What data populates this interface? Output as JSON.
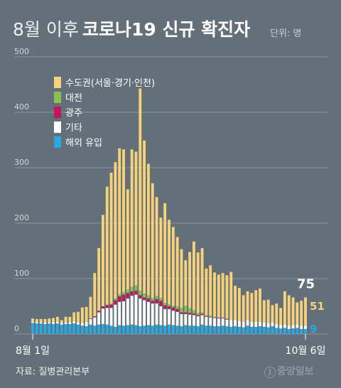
{
  "title": {
    "light": "8월 이후",
    "bold": "코로나19 신규 확진자"
  },
  "unit": "단위: 명",
  "source": "자료: 질병관리본부",
  "logo": "중앙일보",
  "logo_mark": "J",
  "colors": {
    "background": "#636f79",
    "capital": "#f6d27a",
    "daejeon": "#8cc152",
    "gwangju": "#c2185b",
    "other": "#ffffff",
    "overseas": "#29a8e0",
    "gridline": "#8c969e"
  },
  "chart_data": {
    "type": "bar",
    "stacked": true,
    "ylim": [
      0,
      500
    ],
    "y_ticks": [
      "0",
      "100",
      "200",
      "300",
      "400",
      "500"
    ],
    "x_tick_labels": [
      "8월 1일",
      "10월 6일"
    ],
    "legend": [
      "수도권(서울·경기·인천)",
      "대전",
      "광주",
      "기타",
      "해외 유입"
    ],
    "legend_position": "top-left",
    "dates": [
      "8/1",
      "8/2",
      "8/3",
      "8/4",
      "8/5",
      "8/6",
      "8/7",
      "8/8",
      "8/9",
      "8/10",
      "8/11",
      "8/12",
      "8/13",
      "8/14",
      "8/15",
      "8/16",
      "8/17",
      "8/18",
      "8/19",
      "8/20",
      "8/21",
      "8/22",
      "8/23",
      "8/24",
      "8/25",
      "8/26",
      "8/27",
      "8/28",
      "8/29",
      "8/30",
      "8/31",
      "9/1",
      "9/2",
      "9/3",
      "9/4",
      "9/5",
      "9/6",
      "9/7",
      "9/8",
      "9/9",
      "9/10",
      "9/11",
      "9/12",
      "9/13",
      "9/14",
      "9/15",
      "9/16",
      "9/17",
      "9/18",
      "9/19",
      "9/20",
      "9/21",
      "9/22",
      "9/23",
      "9/24",
      "9/25",
      "9/26",
      "9/27",
      "9/28",
      "9/29",
      "9/30",
      "10/1",
      "10/2",
      "10/3",
      "10/4",
      "10/5",
      "10/6"
    ],
    "series": [
      {
        "name": "해외 유입",
        "values": [
          20,
          19,
          19,
          18,
          19,
          18,
          19,
          17,
          18,
          18,
          19,
          17,
          15,
          14,
          17,
          15,
          17,
          18,
          17,
          15,
          13,
          16,
          15,
          16,
          17,
          16,
          14,
          15,
          16,
          15,
          17,
          16,
          15,
          17,
          16,
          15,
          14,
          16,
          15,
          15,
          14,
          17,
          15,
          15,
          14,
          14,
          15,
          14,
          13,
          14,
          13,
          12,
          15,
          13,
          13,
          14,
          13,
          12,
          14,
          11,
          10,
          11,
          9,
          10,
          11,
          9,
          9
        ]
      },
      {
        "name": "기타",
        "values": [
          2,
          2,
          2,
          2,
          2,
          3,
          3,
          3,
          3,
          3,
          4,
          4,
          5,
          8,
          10,
          15,
          22,
          28,
          30,
          32,
          40,
          42,
          44,
          48,
          52,
          55,
          50,
          46,
          42,
          40,
          38,
          34,
          30,
          28,
          26,
          25,
          22,
          20,
          20,
          19,
          18,
          17,
          16,
          15,
          15,
          14,
          13,
          12,
          12,
          11,
          11,
          10,
          10,
          9,
          9,
          8,
          8,
          8,
          7,
          7,
          7,
          6,
          6,
          6,
          6,
          6,
          6
        ]
      },
      {
        "name": "광주",
        "values": [
          0,
          0,
          0,
          0,
          0,
          0,
          0,
          0,
          0,
          0,
          0,
          0,
          0,
          0,
          1,
          2,
          3,
          4,
          5,
          6,
          8,
          10,
          12,
          10,
          8,
          7,
          6,
          5,
          6,
          5,
          8,
          10,
          7,
          5,
          6,
          5,
          3,
          3,
          3,
          3,
          2,
          2,
          1,
          1,
          1,
          1,
          1,
          1,
          0,
          0,
          0,
          0,
          0,
          0,
          0,
          0,
          0,
          0,
          0,
          0,
          0,
          0,
          0,
          0,
          0,
          0,
          0
        ]
      },
      {
        "name": "대전",
        "values": [
          0,
          0,
          0,
          0,
          0,
          0,
          0,
          0,
          0,
          0,
          0,
          0,
          0,
          0,
          0,
          0,
          0,
          0,
          1,
          2,
          3,
          4,
          5,
          6,
          8,
          10,
          8,
          7,
          6,
          5,
          6,
          5,
          4,
          4,
          3,
          5,
          8,
          12,
          9,
          6,
          4,
          3,
          2,
          2,
          1,
          1,
          1,
          1,
          0,
          0,
          0,
          0,
          0,
          0,
          0,
          0,
          0,
          0,
          0,
          0,
          0,
          0,
          0,
          0,
          0,
          0,
          0
        ]
      },
      {
        "name": "수도권(서울·경기·인천)",
        "values": [
          6,
          6,
          6,
          7,
          7,
          8,
          9,
          5,
          10,
          10,
          16,
          19,
          28,
          27,
          39,
          78,
          113,
          165,
          213,
          236,
          246,
          263,
          257,
          181,
          248,
          241,
          365,
          276,
          237,
          207,
          178,
          145,
          180,
          152,
          142,
          125,
          106,
          82,
          101,
          124,
          109,
          116,
          84,
          91,
          80,
          77,
          80,
          78,
          87,
          62,
          59,
          48,
          52,
          52,
          57,
          60,
          40,
          42,
          31,
          37,
          30,
          60,
          55,
          50,
          40,
          45,
          51
        ]
      }
    ],
    "annotations": [
      {
        "label": "75",
        "value": 75
      },
      {
        "label": "51",
        "value": 51
      },
      {
        "label": "9",
        "value": 9
      }
    ]
  }
}
